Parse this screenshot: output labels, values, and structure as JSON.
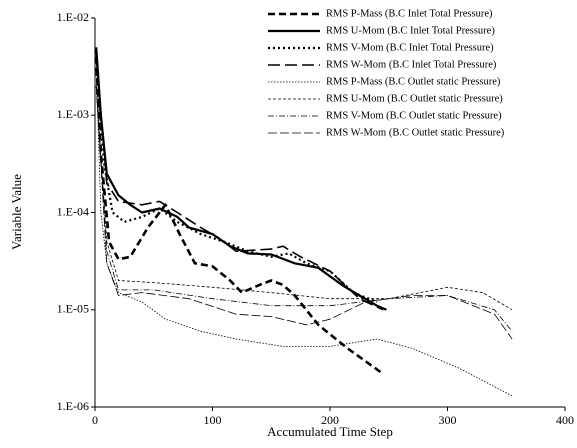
{
  "chart_data": {
    "type": "line",
    "log_y": true,
    "legend": "top-right",
    "x_label": "Accumulated Time Step",
    "y_label": "Variable Value",
    "xlim": [
      0,
      400
    ],
    "xticks": [
      0,
      100,
      200,
      300,
      400
    ],
    "ylim": [
      1e-06,
      0.01
    ],
    "yticks": [
      {
        "value": 1e-06,
        "label": "1.E-06"
      },
      {
        "value": 1e-05,
        "label": "1.E-05"
      },
      {
        "value": 0.0001,
        "label": "1.E-04"
      },
      {
        "value": 0.001,
        "label": "1.E-03"
      },
      {
        "value": 0.01,
        "label": "1.E-02"
      }
    ],
    "series": [
      {
        "name": "RMS P-Mass (B.C Inlet Total Pressure)",
        "color": "#000000",
        "width": 2.6,
        "dash": "7,4",
        "x": [
          1,
          5,
          12,
          20,
          30,
          45,
          60,
          72,
          85,
          100,
          115,
          125,
          140,
          150,
          160,
          170,
          190,
          215,
          245
        ],
        "values": [
          0.004,
          0.0004,
          5e-05,
          3.3e-05,
          3.5e-05,
          7e-05,
          0.00012,
          6e-05,
          3e-05,
          2.8e-05,
          2e-05,
          1.5e-05,
          1.8e-05,
          2e-05,
          1.8e-05,
          1.4e-05,
          7e-06,
          4e-06,
          2.2e-06
        ]
      },
      {
        "name": "RMS U-Mom (B.C Inlet Total Pressure)",
        "color": "#000000",
        "width": 2.2,
        "dash": "none",
        "x": [
          1,
          5,
          10,
          20,
          30,
          40,
          55,
          70,
          80,
          100,
          115,
          130,
          150,
          170,
          190,
          210,
          225,
          240,
          248
        ],
        "values": [
          0.005,
          0.001,
          0.00025,
          0.00015,
          0.00012,
          0.0001,
          0.00011,
          9e-05,
          7e-05,
          6e-05,
          4.5e-05,
          3.8e-05,
          3.7e-05,
          3e-05,
          2.7e-05,
          1.8e-05,
          1.4e-05,
          1.1e-05,
          1e-05
        ]
      },
      {
        "name": "RMS V-Mom (B.C Inlet Total Pressure)",
        "color": "#000000",
        "width": 2.2,
        "dash": "2,3",
        "x": [
          1,
          8,
          15,
          25,
          40,
          55,
          70,
          90,
          110,
          130,
          150,
          165,
          180,
          200,
          220,
          240
        ],
        "values": [
          0.003,
          0.0003,
          0.0001,
          8e-05,
          9e-05,
          0.00011,
          8e-05,
          6e-05,
          5e-05,
          4e-05,
          3.5e-05,
          3.8e-05,
          3e-05,
          2.5e-05,
          1.5e-05,
          1.2e-05
        ]
      },
      {
        "name": "RMS W-Mom (B.C Inlet Total Pressure)",
        "color": "#000000",
        "width": 1.6,
        "dash": "12,5",
        "x": [
          1,
          10,
          20,
          40,
          55,
          70,
          90,
          105,
          120,
          150,
          160,
          175,
          200,
          225,
          245
        ],
        "values": [
          0.004,
          0.0002,
          0.00013,
          0.00012,
          0.00013,
          0.0001,
          7e-05,
          5.5e-05,
          4e-05,
          4.2e-05,
          4.5e-05,
          3.5e-05,
          2.5e-05,
          1.3e-05,
          1e-05
        ]
      },
      {
        "name": "RMS P-Mass (B.C Outlet static Pressure)",
        "color": "#000000",
        "width": 0.8,
        "dash": "1.5,1.5",
        "x": [
          1,
          5,
          10,
          20,
          40,
          60,
          90,
          120,
          160,
          200,
          240,
          270,
          310,
          355
        ],
        "values": [
          0.003,
          0.0001,
          3e-05,
          1.5e-05,
          1.2e-05,
          8e-06,
          6e-06,
          5e-06,
          4.2e-06,
          4.2e-06,
          5e-06,
          4e-06,
          2.5e-06,
          1.3e-06
        ]
      },
      {
        "name": "RMS U-Mom (B.C Outlet static Pressure)",
        "color": "#000000",
        "width": 0.8,
        "dash": "3,2",
        "x": [
          1,
          10,
          20,
          50,
          100,
          150,
          200,
          250,
          300,
          330,
          355
        ],
        "values": [
          0.002,
          5e-05,
          2e-05,
          1.9e-05,
          1.7e-05,
          1.5e-05,
          1.3e-05,
          1.3e-05,
          1.7e-05,
          1.5e-05,
          1e-05
        ]
      },
      {
        "name": "RMS V-Mom (B.C Outlet static Pressure)",
        "color": "#000000",
        "width": 0.8,
        "dash": "6,2,1,2",
        "x": [
          1,
          10,
          20,
          50,
          100,
          150,
          200,
          250,
          300,
          340,
          355
        ],
        "values": [
          0.002,
          4e-05,
          1.6e-05,
          1.6e-05,
          1.3e-05,
          1.1e-05,
          1.1e-05,
          1.3e-05,
          1.4e-05,
          1e-05,
          6e-06
        ]
      },
      {
        "name": "RMS W-Mom (B.C Outlet static Pressure)",
        "color": "#000000",
        "width": 0.8,
        "dash": "9,3",
        "x": [
          1,
          10,
          20,
          40,
          80,
          120,
          150,
          180,
          200,
          230,
          270,
          300,
          340,
          355
        ],
        "values": [
          0.002,
          3e-05,
          1.4e-05,
          1.5e-05,
          1.3e-05,
          9e-06,
          8.5e-06,
          7e-06,
          8e-06,
          1.2e-05,
          1.4e-05,
          1.4e-05,
          9e-06,
          5e-06
        ]
      }
    ]
  }
}
